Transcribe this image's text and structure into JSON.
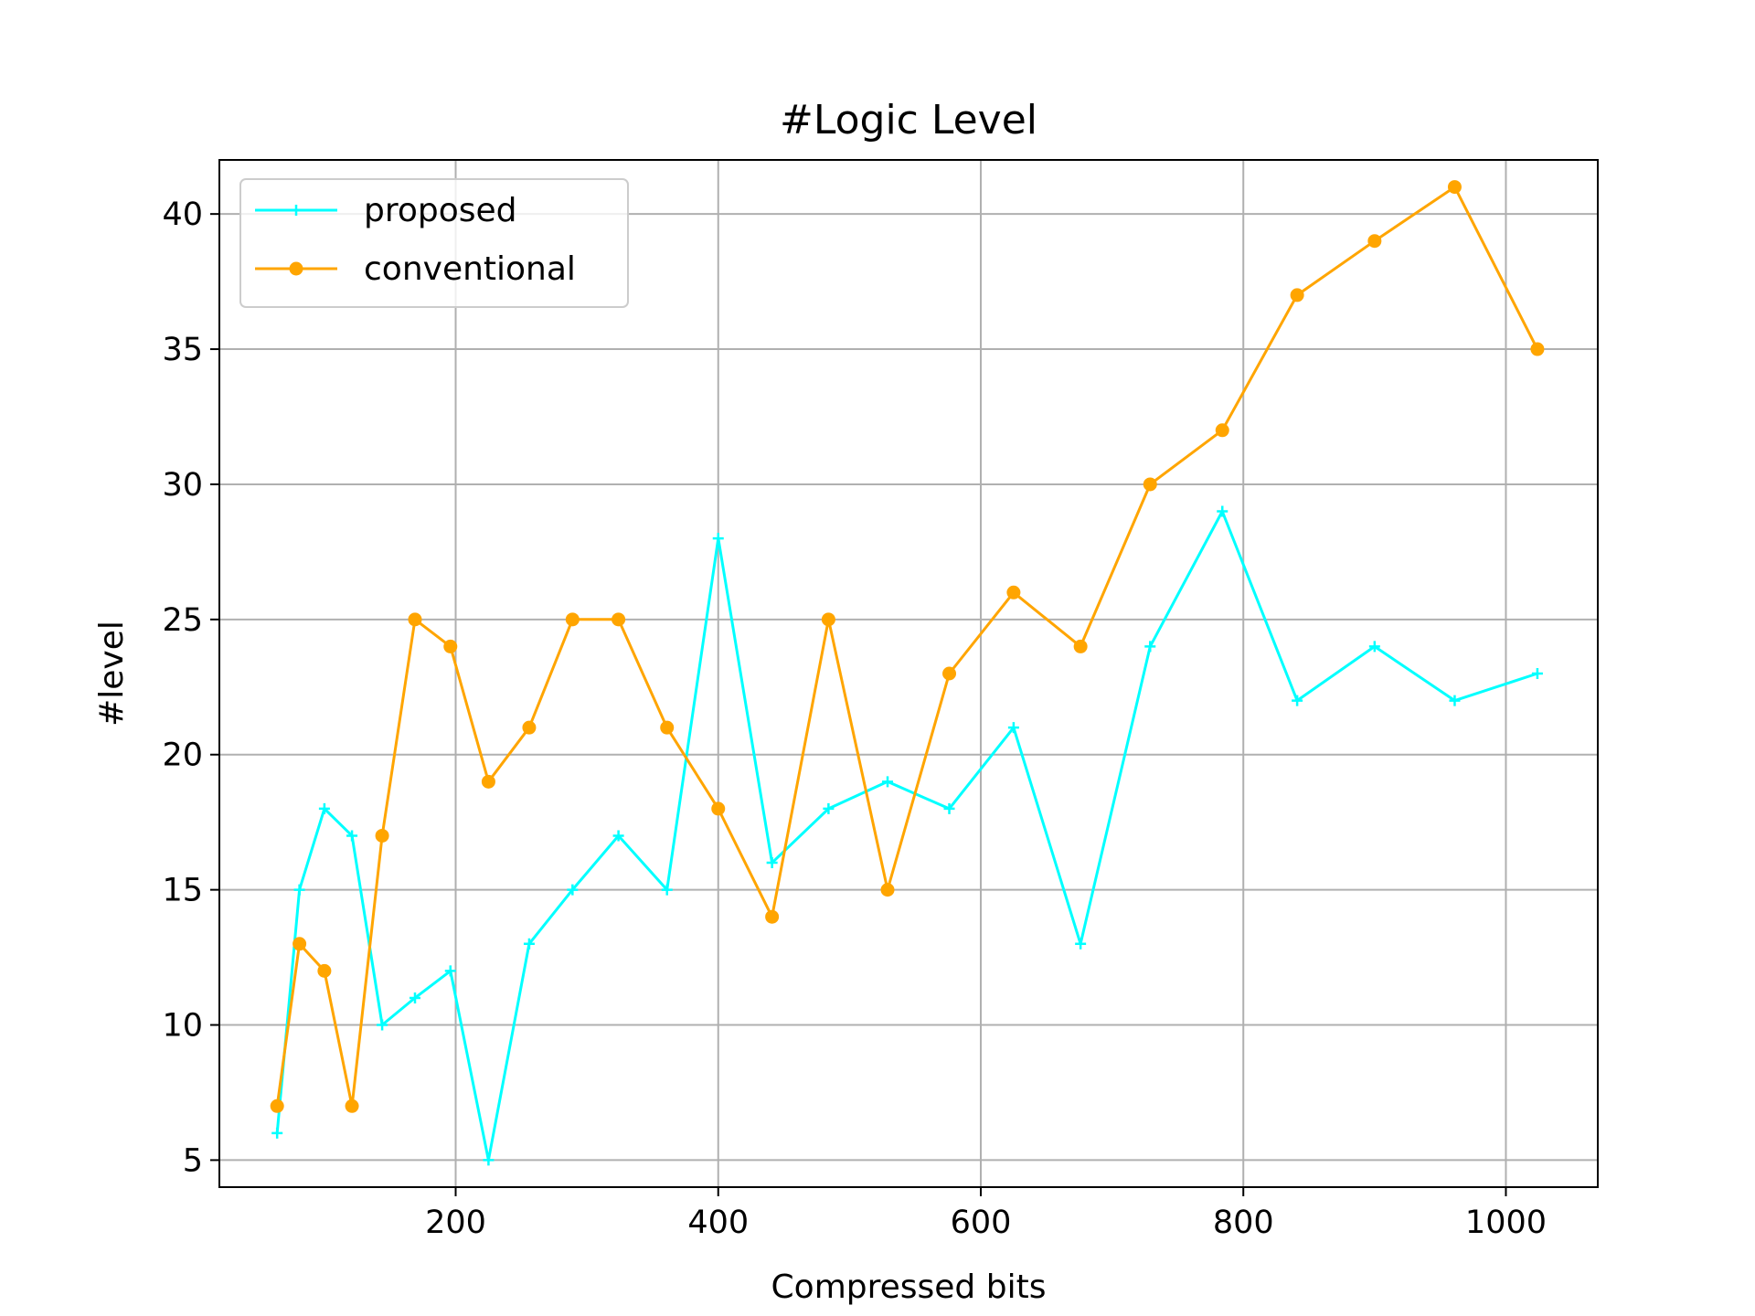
{
  "chart_data": {
    "type": "line",
    "title": "#Logic Level",
    "xlabel": "Compressed bits",
    "ylabel": "#level",
    "xlim": [
      20,
      1070
    ],
    "ylim": [
      4,
      42
    ],
    "xticks": [
      200,
      400,
      600,
      800,
      1000
    ],
    "yticks": [
      5,
      10,
      15,
      20,
      25,
      30,
      35,
      40
    ],
    "grid": true,
    "legend_position": "top-left",
    "x": [
      64,
      81,
      100,
      121,
      144,
      169,
      196,
      225,
      256,
      289,
      324,
      361,
      400,
      441,
      484,
      529,
      576,
      625,
      676,
      729,
      784,
      841,
      900,
      961,
      1024
    ],
    "series": [
      {
        "name": "proposed",
        "color": "#00ffff",
        "marker": "plus",
        "values": [
          6,
          15,
          18,
          17,
          10,
          11,
          12,
          5,
          13,
          15,
          17,
          15,
          28,
          16,
          18,
          19,
          18,
          21,
          13,
          24,
          29,
          22,
          24,
          22,
          23
        ]
      },
      {
        "name": "conventional",
        "color": "#ffa500",
        "marker": "circle",
        "values": [
          7,
          13,
          12,
          7,
          17,
          25,
          24,
          19,
          21,
          25,
          25,
          21,
          18,
          14,
          25,
          15,
          23,
          26,
          24,
          30,
          32,
          37,
          39,
          41,
          35
        ]
      }
    ]
  }
}
